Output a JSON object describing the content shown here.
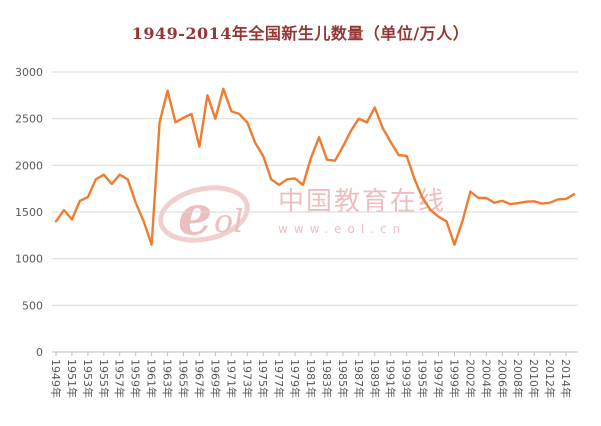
{
  "watermark": {
    "logo_text": "eol",
    "brand": "中国教育在线",
    "url": "www.eol.cn",
    "color": "#d98080"
  },
  "chart_data": {
    "type": "line",
    "title": "1949-2014年全国新生儿数量（单位/万人）",
    "title_color": "#953735",
    "line_color": "#ED7D31",
    "grid": true,
    "legend": "none",
    "ylabel": "",
    "xlabel": "",
    "ylim": [
      0,
      3000
    ],
    "yticks": [
      0,
      500,
      1000,
      1500,
      2000,
      2500,
      3000
    ],
    "x_tick_labels": [
      "1949年",
      "1951年",
      "1953年",
      "1955年",
      "1957年",
      "1959年",
      "1961年",
      "1963年",
      "1965年",
      "1967年",
      "1969年",
      "1971年",
      "1973年",
      "1975年",
      "1977年",
      "1979年",
      "1981年",
      "1983年",
      "1985年",
      "1987年",
      "1989年",
      "1991年",
      "1993年",
      "1995年",
      "1997年",
      "1999年",
      "2002年",
      "2004年",
      "2006年",
      "2008年",
      "2010年",
      "2012年",
      "2014年"
    ],
    "x": [
      1949,
      1950,
      1951,
      1952,
      1953,
      1954,
      1955,
      1956,
      1957,
      1958,
      1959,
      1960,
      1961,
      1962,
      1963,
      1964,
      1965,
      1966,
      1967,
      1968,
      1969,
      1970,
      1971,
      1972,
      1973,
      1974,
      1975,
      1976,
      1977,
      1978,
      1979,
      1980,
      1981,
      1982,
      1983,
      1984,
      1985,
      1986,
      1987,
      1988,
      1989,
      1990,
      1991,
      1992,
      1993,
      1994,
      1995,
      1996,
      1997,
      1998,
      1999,
      2000,
      2001,
      2002,
      2003,
      2004,
      2005,
      2006,
      2007,
      2008,
      2009,
      2010,
      2011,
      2012,
      2013,
      2014
    ],
    "values": [
      1400,
      1520,
      1420,
      1620,
      1660,
      1850,
      1900,
      1800,
      1900,
      1850,
      1600,
      1400,
      1150,
      2460,
      2800,
      2460,
      2510,
      2550,
      2200,
      2750,
      2500,
      2820,
      2580,
      2550,
      2460,
      2240,
      2100,
      1850,
      1790,
      1850,
      1860,
      1790,
      2080,
      2300,
      2060,
      2050,
      2200,
      2370,
      2500,
      2460,
      2620,
      2400,
      2250,
      2110,
      2100,
      1850,
      1650,
      1520,
      1450,
      1400,
      1150,
      1400,
      1720,
      1650,
      1650,
      1600,
      1620,
      1585,
      1595,
      1610,
      1615,
      1590,
      1600,
      1635,
      1640,
      1690
    ]
  }
}
